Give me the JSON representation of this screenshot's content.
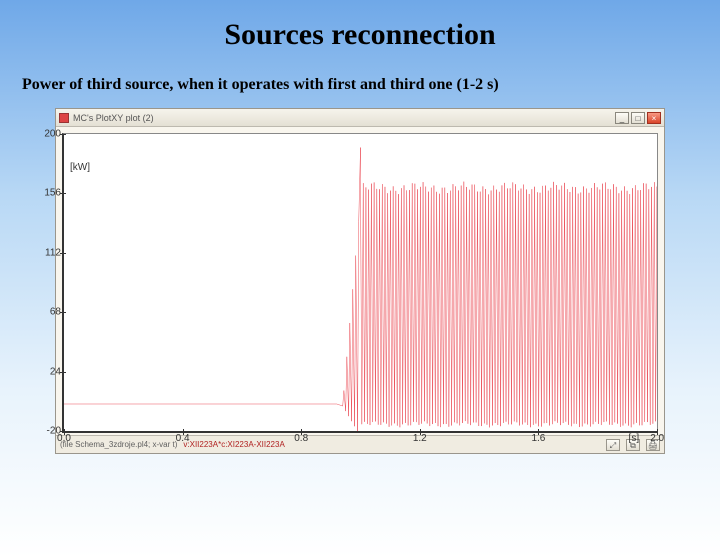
{
  "slide": {
    "title": "Sources reconnection",
    "subtitle": "Power of third source, when it operates with first and third one (1-2 s)"
  },
  "window": {
    "title": "MC's PlotXY plot (2)",
    "buttons": {
      "min": "_",
      "max": "□",
      "close": "×"
    }
  },
  "chart": {
    "type": "line",
    "line_color": "#e30614",
    "line_width": 1,
    "background_color": "#ffffff",
    "axis_color": "#333333",
    "y_unit_label": "[kW]",
    "x_unit_label": "[s]",
    "xlim": [
      0.0,
      2.0
    ],
    "ylim": [
      -20,
      200
    ],
    "xticks": [
      0.0,
      0.4,
      0.8,
      1.2,
      1.6,
      2.0
    ],
    "yticks": [
      -20,
      24,
      68,
      112,
      156,
      200
    ],
    "xtick_labels": [
      "0.0",
      "0.4",
      "0.8",
      "1.2",
      "1.6",
      "2.0"
    ],
    "ytick_labels": [
      "-20",
      "24",
      "68",
      "112",
      "156",
      "200"
    ],
    "series": {
      "baseline_y": 0,
      "transition_x": 1.0,
      "peak_y": 190,
      "osc_center_y": 75,
      "osc_high_y": 160,
      "osc_low_y": -15,
      "osc_count": 110
    }
  },
  "status": {
    "left": "(file Schema_3zdroje.pl4; x-var t)",
    "expr": "v:XII223A*c:XI223A-XII223A",
    "buttons": [
      "⤢",
      "⧉",
      "🖨"
    ]
  }
}
